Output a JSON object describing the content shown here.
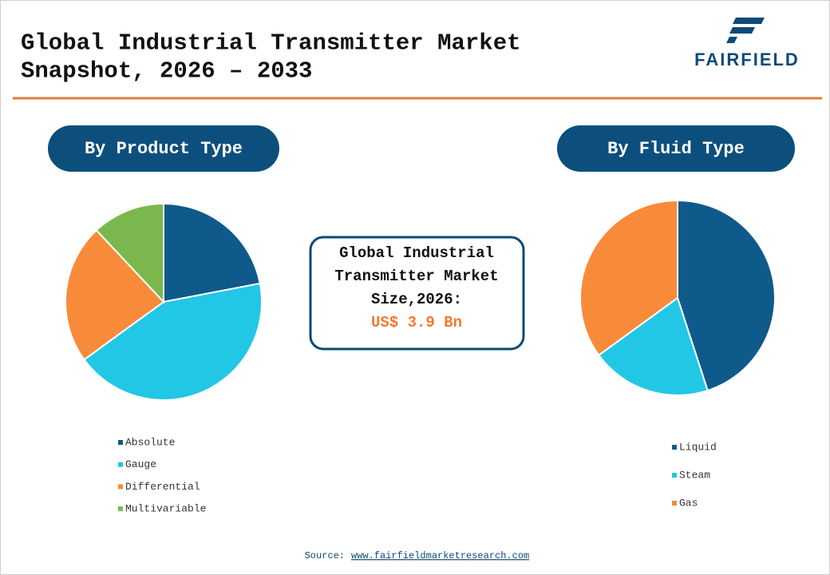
{
  "header": {
    "title_lines": [
      "Global Industrial Transmitter Market",
      "Snapshot, 2026 – 2033"
    ],
    "logo": "FAIRFIELD"
  },
  "chart_data": [
    {
      "type": "pie",
      "title": "By Product Type",
      "categories": [
        "Absolute",
        "Gauge",
        "Differential",
        "Multivariable"
      ],
      "values": [
        22,
        43,
        23,
        12
      ],
      "colors": [
        "#0e5a8a",
        "#22c7e6",
        "#f88b3a",
        "#7ab84e"
      ]
    },
    {
      "type": "pie",
      "title": "By Fluid Type",
      "categories": [
        "Liquid",
        "Steam",
        "Gas"
      ],
      "values": [
        45,
        20,
        35
      ],
      "colors": [
        "#0e5a8a",
        "#22c7e6",
        "#f88b3a"
      ]
    }
  ],
  "center_box": {
    "lines": [
      "Global Industrial",
      "Transmitter Market",
      "Size,2026:"
    ],
    "value": "US$ 3.9 Bn"
  },
  "source": {
    "label": "Source:",
    "link": "www.fairfieldmarketresearch.com"
  }
}
